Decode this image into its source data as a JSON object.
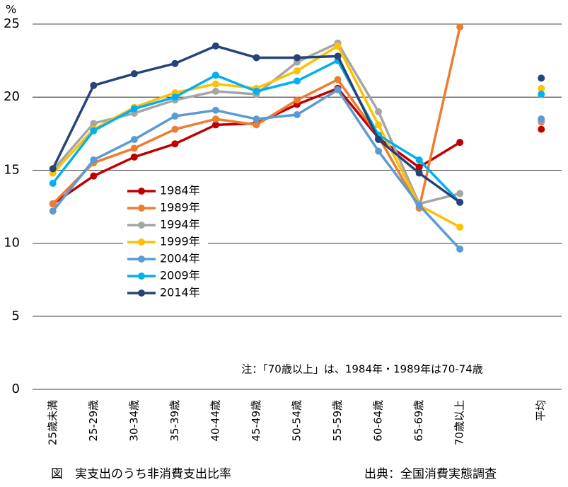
{
  "chart_data": {
    "type": "line",
    "y_unit": "%",
    "categories": [
      "25歳未満",
      "25-29歳",
      "30-34歳",
      "35-39歳",
      "40-44歳",
      "45-49歳",
      "50-54歳",
      "55-59歳",
      "60-64歳",
      "65-69歳",
      "70歳以上",
      null,
      "平均"
    ],
    "series": [
      {
        "name": "1984年",
        "color": "#c00000",
        "values": [
          12.7,
          14.6,
          15.9,
          16.8,
          18.1,
          18.2,
          19.5,
          20.6,
          17.2,
          15.2,
          16.9,
          null,
          17.8
        ]
      },
      {
        "name": "1989年",
        "color": "#ed7d31",
        "values": [
          12.7,
          15.5,
          16.5,
          17.8,
          18.5,
          18.1,
          19.8,
          21.2,
          17.3,
          12.4,
          24.8,
          null,
          18.3
        ]
      },
      {
        "name": "1994年",
        "color": "#a5a5a5",
        "values": [
          15.0,
          18.2,
          18.9,
          19.8,
          20.4,
          20.2,
          22.4,
          23.7,
          19.0,
          12.7,
          13.4,
          null,
          18.4
        ]
      },
      {
        "name": "1999年",
        "color": "#ffc000",
        "values": [
          14.8,
          17.8,
          19.3,
          20.3,
          20.9,
          20.6,
          21.8,
          23.5,
          18.1,
          12.6,
          11.1,
          null,
          20.6
        ]
      },
      {
        "name": "2004年",
        "color": "#5b9bd5",
        "values": [
          12.2,
          15.7,
          17.1,
          18.7,
          19.1,
          18.5,
          18.8,
          20.5,
          16.3,
          12.6,
          9.6,
          null,
          18.5
        ]
      },
      {
        "name": "2009年",
        "color": "#00b0f0",
        "values": [
          14.1,
          17.7,
          19.2,
          20.0,
          21.5,
          20.4,
          21.1,
          22.5,
          17.4,
          15.7,
          12.8,
          null,
          20.2
        ]
      },
      {
        "name": "2014年",
        "color": "#264478",
        "values": [
          15.1,
          20.8,
          21.6,
          22.3,
          23.5,
          22.7,
          22.7,
          22.8,
          17.1,
          14.8,
          12.8,
          null,
          21.3
        ]
      }
    ],
    "ylim": [
      0,
      25
    ],
    "yticks": [
      0,
      5,
      10,
      15,
      20,
      25
    ],
    "grid": true,
    "legend": "left",
    "annotation": "注：「70歳以上」は、1984年・1989年は70-74歳",
    "caption": "図　実支出のうち非消費支出比率",
    "source": "出典：全国消費実態調査"
  }
}
